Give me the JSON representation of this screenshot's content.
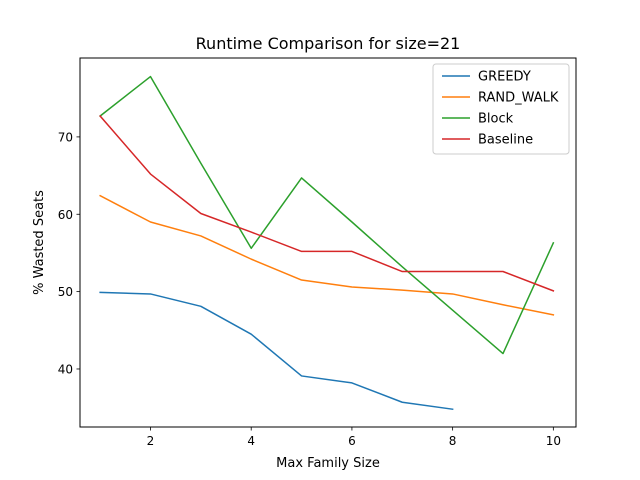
{
  "chart_data": {
    "type": "line",
    "title": "Runtime Comparison for size=21",
    "xlabel": "Max Family Size",
    "ylabel": "% Wasted Seats",
    "xlim": [
      0.6,
      10.45
    ],
    "ylim": [
      32.5,
      80.2
    ],
    "xticks": [
      2,
      4,
      6,
      8,
      10
    ],
    "yticks": [
      40,
      50,
      60,
      70
    ],
    "grid": false,
    "legend_position": "top-right",
    "series": [
      {
        "name": "GREEDY",
        "color": "#1f77b4",
        "x": [
          1,
          2,
          3,
          4,
          5,
          6,
          7,
          8
        ],
        "y": [
          49.9,
          49.7,
          48.1,
          44.5,
          39.1,
          38.2,
          35.7,
          34.8
        ]
      },
      {
        "name": "RAND_WALK",
        "color": "#ff7f0e",
        "x": [
          1,
          2,
          3,
          4,
          5,
          6,
          7,
          8,
          9,
          10
        ],
        "y": [
          62.4,
          59.0,
          57.2,
          54.2,
          51.5,
          50.6,
          50.2,
          49.7,
          48.3,
          47.0
        ]
      },
      {
        "name": "Block",
        "color": "#2ca02c",
        "x": [
          1,
          2,
          3,
          4,
          5,
          6,
          7,
          8,
          9,
          10
        ],
        "y": [
          72.7,
          77.8,
          66.6,
          55.6,
          64.7,
          59.0,
          53.2,
          47.6,
          42.0,
          56.3
        ]
      },
      {
        "name": "Baseline",
        "color": "#d62728",
        "x": [
          1,
          2,
          3,
          4,
          5,
          6,
          7,
          8,
          9,
          10
        ],
        "y": [
          72.7,
          65.2,
          60.1,
          57.7,
          55.2,
          55.2,
          52.6,
          52.6,
          52.6,
          50.1
        ]
      }
    ]
  }
}
